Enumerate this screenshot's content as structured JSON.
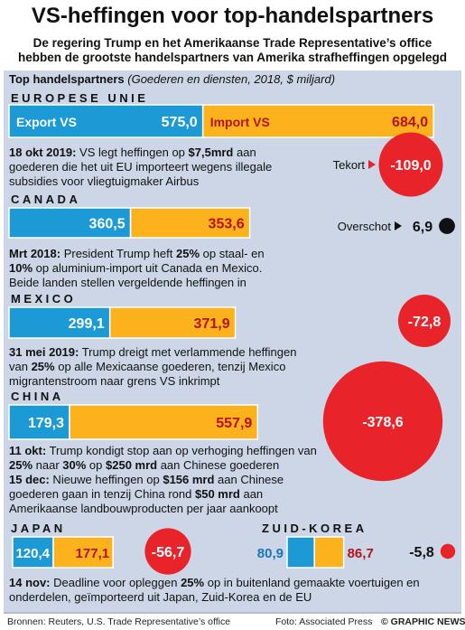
{
  "title": "VS-heffingen voor top-handelspartners",
  "subtitle_1": "De regering Trump en het Amerikaanse Trade Representative’s office",
  "subtitle_2": "hebben de grootste handelspartners van Amerika strafheffingen opgelegd",
  "section_heading": "Top handelspartners",
  "section_unit": "(Goederen en diensten, 2018, $ miljard)",
  "legend": {
    "export_label": "Export VS",
    "import_label": "Import VS",
    "deficit_label": "Tekort",
    "surplus_label": "Overschot"
  },
  "notes": {
    "eu": {
      "date": "18 okt 2019:",
      "text_a": " VS legt heffingen op ",
      "bold_a": "$7,5mrd",
      "text_b": " aan goederen die het uit EU importeert wegens illegale subsidies voor vliegtuigmaker Airbus"
    },
    "canada": {
      "date": "Mrt 2018:",
      "text_a": " President Trump heft ",
      "bold_a": "25%",
      "text_b": " op staal- en ",
      "bold_b": "10%",
      "text_c": " op aluminium-import uit Canada en Mexico. Beide landen stellen vergeldende heffingen in"
    },
    "mexico": {
      "date": "31 mei 2019:",
      "text_a": " Trump dreigt met verlammende heffingen van ",
      "bold_a": "25%",
      "text_b": " op alle Mexicaanse goederen, tenzij Mexico migrantenstroom naar grens VS inkrimpt"
    },
    "china_1": {
      "date": "11 okt:",
      "text_a": " Trump kondigt stop aan op verhoging heffingen van ",
      "bold_a": "25%",
      "text_b": " naar ",
      "bold_b": "30%",
      "text_c": " op ",
      "bold_c": "$250 mrd",
      "text_d": " aan Chinese goederen"
    },
    "china_2": {
      "date": "15 dec:",
      "text_a": " Nieuwe heffingen op ",
      "bold_a": "$156 mrd",
      "text_b": " aan Chinese goederen gaan in tenzij China rond ",
      "bold_b": "$50 mrd",
      "text_c": " aan Amerikaanse landbouwproducten per jaar aankoopt"
    },
    "japan_korea": {
      "date": "14 nov:",
      "text_a": " Deadline voor opleggen ",
      "bold_a": "25%",
      "text_b": " op in buitenland gemaakte voertuigen en onderdelen, geïmporteerd uit Japan, Zuid-Korea en de EU"
    }
  },
  "footer": {
    "sources": "Bronnen: Reuters, U.S. Trade Representative’s office",
    "photo": "Foto: Associated Press",
    "credit": "© GRAPHIC NEWS"
  },
  "colors": {
    "export": "#1b9ad6",
    "import": "#fbb21d",
    "deficit": "#e8242a",
    "surplus": "#111111",
    "panel": "#ccd6e6"
  },
  "chart_data": {
    "type": "bar",
    "title": "Top handelspartners",
    "subtitle": "(Goederen en diensten, 2018, $ miljard)",
    "series_names": [
      "Export VS",
      "Import VS"
    ],
    "categories": [
      "EUROPESE UNIE",
      "CANADA",
      "MEXICO",
      "CHINA",
      "JAPAN",
      "ZUID-KOREA"
    ],
    "export": [
      575.0,
      360.5,
      299.1,
      179.3,
      120.4,
      80.9
    ],
    "import": [
      684.0,
      353.6,
      371.9,
      557.9,
      177.1,
      86.7
    ],
    "balance": [
      -109.0,
      6.9,
      -72.8,
      -378.6,
      -56.7,
      -5.8
    ],
    "export_labels": [
      "575,0",
      "360,5",
      "299,1",
      "179,3",
      "120,4",
      "80,9"
    ],
    "import_labels": [
      "684,0",
      "353,6",
      "371,9",
      "557,9",
      "177,1",
      "86,7"
    ],
    "balance_labels": [
      "-109,0",
      "6,9",
      "-72,8",
      "-378,6",
      "-56,7",
      "-5,8"
    ]
  }
}
